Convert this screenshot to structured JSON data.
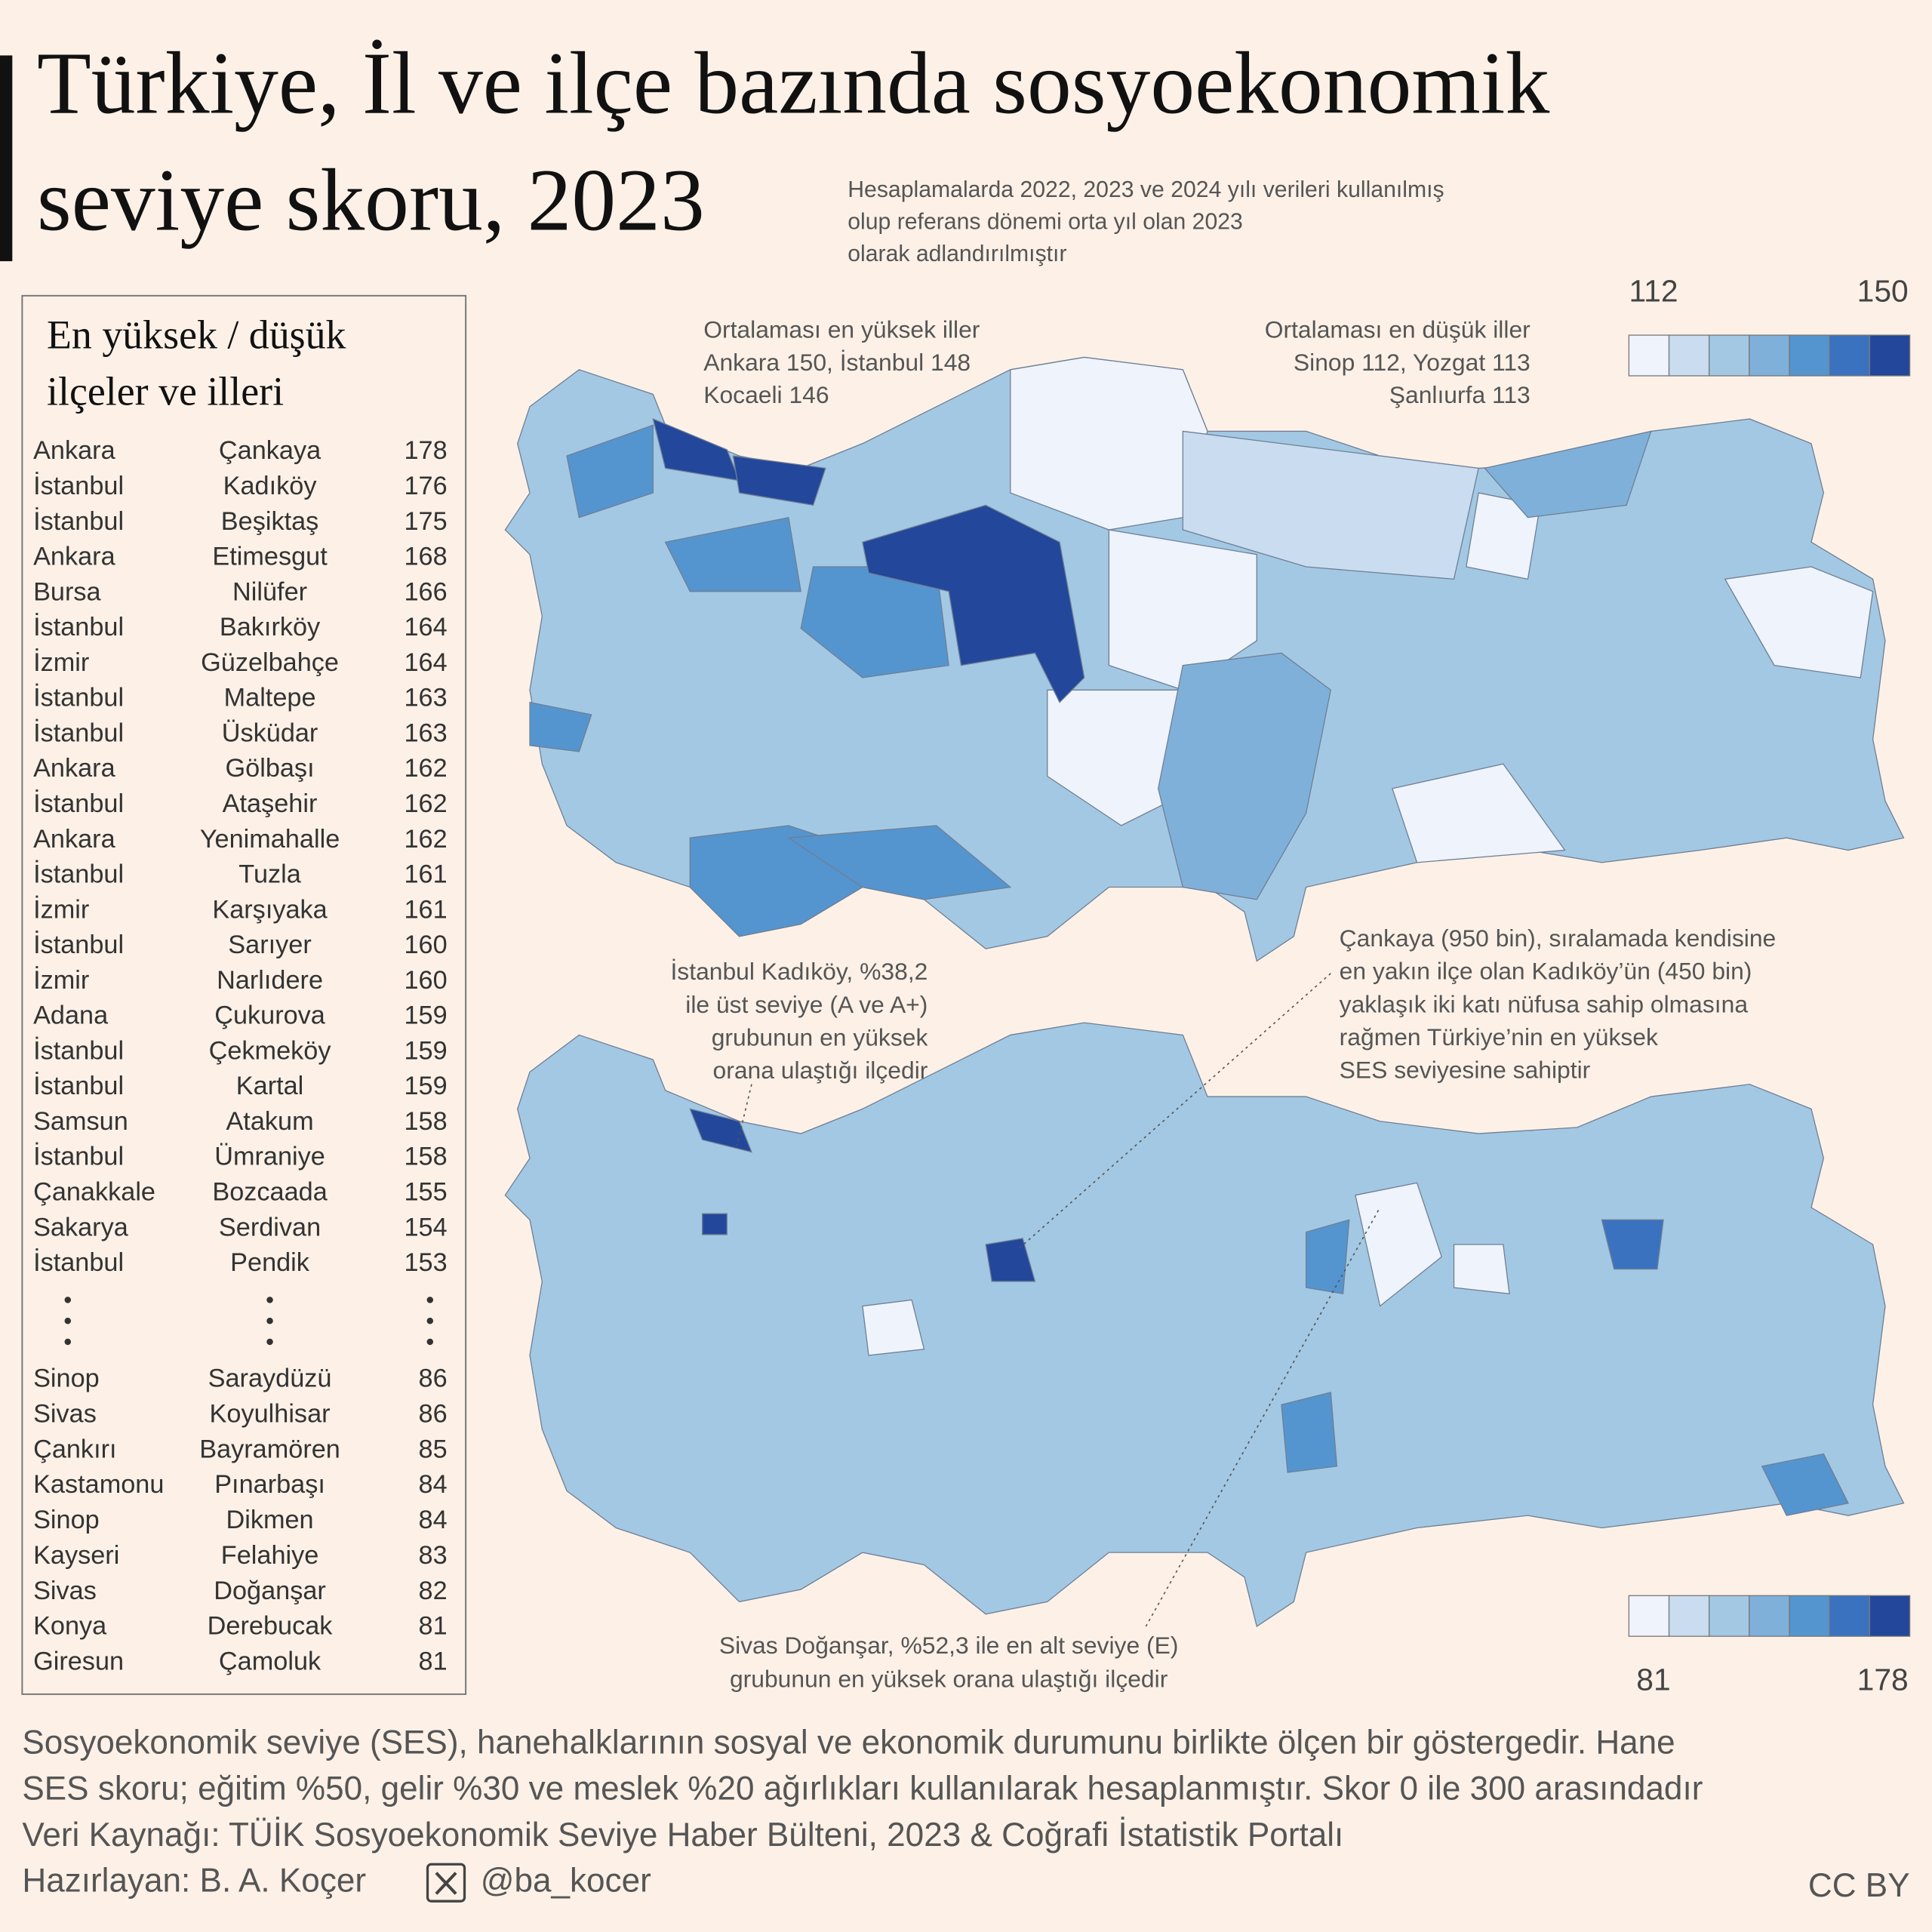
{
  "header": {
    "title": [
      "Türkiye, İl ve ilçe bazında sosyoekonomik",
      "seviye skoru, 2023"
    ],
    "note": [
      "Hesaplamalarda 2022, 2023 ve 2024 yılı verileri kullanılmış",
      "olup referans dönemi orta yıl olan 2023",
      "olarak adlandırılmıştır"
    ]
  },
  "table": {
    "title": [
      "En yüksek / düşük",
      "ilçeler ve illeri"
    ],
    "top_rows": [
      [
        "Ankara",
        "Çankaya",
        178
      ],
      [
        "İstanbul",
        "Kadıköy",
        176
      ],
      [
        "İstanbul",
        "Beşiktaş",
        175
      ],
      [
        "Ankara",
        "Etimesgut",
        168
      ],
      [
        "Bursa",
        "Nilüfer",
        166
      ],
      [
        "İstanbul",
        "Bakırköy",
        164
      ],
      [
        "İzmir",
        "Güzelbahçe",
        164
      ],
      [
        "İstanbul",
        "Maltepe",
        163
      ],
      [
        "İstanbul",
        "Üsküdar",
        163
      ],
      [
        "Ankara",
        "Gölbaşı",
        162
      ],
      [
        "İstanbul",
        "Ataşehir",
        162
      ],
      [
        "Ankara",
        "Yenimahalle",
        162
      ],
      [
        "İstanbul",
        "Tuzla",
        161
      ],
      [
        "İzmir",
        "Karşıyaka",
        161
      ],
      [
        "İstanbul",
        "Sarıyer",
        160
      ],
      [
        "İzmir",
        "Narlıdere",
        160
      ],
      [
        "Adana",
        "Çukurova",
        159
      ],
      [
        "İstanbul",
        "Çekmeköy",
        159
      ],
      [
        "İstanbul",
        "Kartal",
        159
      ],
      [
        "Samsun",
        "Atakum",
        158
      ],
      [
        "İstanbul",
        "Ümraniye",
        158
      ],
      [
        "Çanakkale",
        "Bozcaada",
        155
      ],
      [
        "Sakarya",
        "Serdivan",
        154
      ],
      [
        "İstanbul",
        "Pendik",
        153
      ]
    ],
    "bottom_rows": [
      [
        "Sinop",
        "Saraydüzü",
        86
      ],
      [
        "Sivas",
        "Koyulhisar",
        86
      ],
      [
        "Çankırı",
        "Bayramören",
        85
      ],
      [
        "Kastamonu",
        "Pınarbaşı",
        84
      ],
      [
        "Sinop",
        "Dikmen",
        84
      ],
      [
        "Kayseri",
        "Felahiye",
        83
      ],
      [
        "Sivas",
        "Doğanşar",
        82
      ],
      [
        "Konya",
        "Derebucak",
        81
      ],
      [
        "Giresun",
        "Çamoluk",
        81
      ]
    ]
  },
  "province_map": {
    "legend": {
      "min": 112,
      "max": 150,
      "colors": [
        "#eef3fc",
        "#c9dcf0",
        "#a3c8e3",
        "#7fb0da",
        "#5495cf",
        "#3a72c0",
        "#23479a"
      ]
    },
    "highest": [
      "Ortalaması en yüksek iller",
      "Ankara 150, İstanbul 148",
      "Kocaeli 146"
    ],
    "lowest": [
      "Ortalaması en düşük iller",
      "Sinop 112, Yozgat 113",
      "Şanlıurfa 113"
    ]
  },
  "district_map": {
    "legend": {
      "min": 81,
      "max": 178,
      "colors": [
        "#eef3fc",
        "#c9dcf0",
        "#a3c8e3",
        "#7fb0da",
        "#5495cf",
        "#3a72c0",
        "#23479a"
      ]
    },
    "kadikoy_note": [
      "İstanbul Kadıköy, %38,2",
      "ile üst seviye (A ve A+)",
      "grubunun en yüksek",
      "orana ulaştığı ilçedir"
    ],
    "cankaya_note": [
      "Çankaya (950 bin), sıralamada kendisine",
      "en yakın ilçe olan Kadıköy’ün (450 bin)",
      "yaklaşık iki katı nüfusa sahip olmasına",
      "rağmen Türkiye’nin en yüksek",
      "SES seviyesine sahiptir"
    ],
    "dogansar_note": [
      "Sivas Doğanşar, %52,3 ile en alt seviye (E)",
      "grubunun en yüksek orana ulaştığı ilçedir"
    ]
  },
  "footer": {
    "lines": [
      "Sosyoekonomik seviye (SES), hanehalklarının sosyal ve ekonomik durumunu birlikte ölçen bir göstergedir. Hane",
      "SES skoru; eğitim %50, gelir %30 ve meslek %20 ağırlıkları kullanılarak hesaplanmıştır. Skor 0 ile 300 arasındadır",
      "Veri Kaynağı: TÜİK Sosyoekonomik Seviye Haber Bülteni, 2023 & Coğrafi İstatistik Portalı"
    ],
    "author": "Hazırlayan: B. A. Koçer",
    "handle": "@ba_kocer",
    "license": "CC BY"
  }
}
